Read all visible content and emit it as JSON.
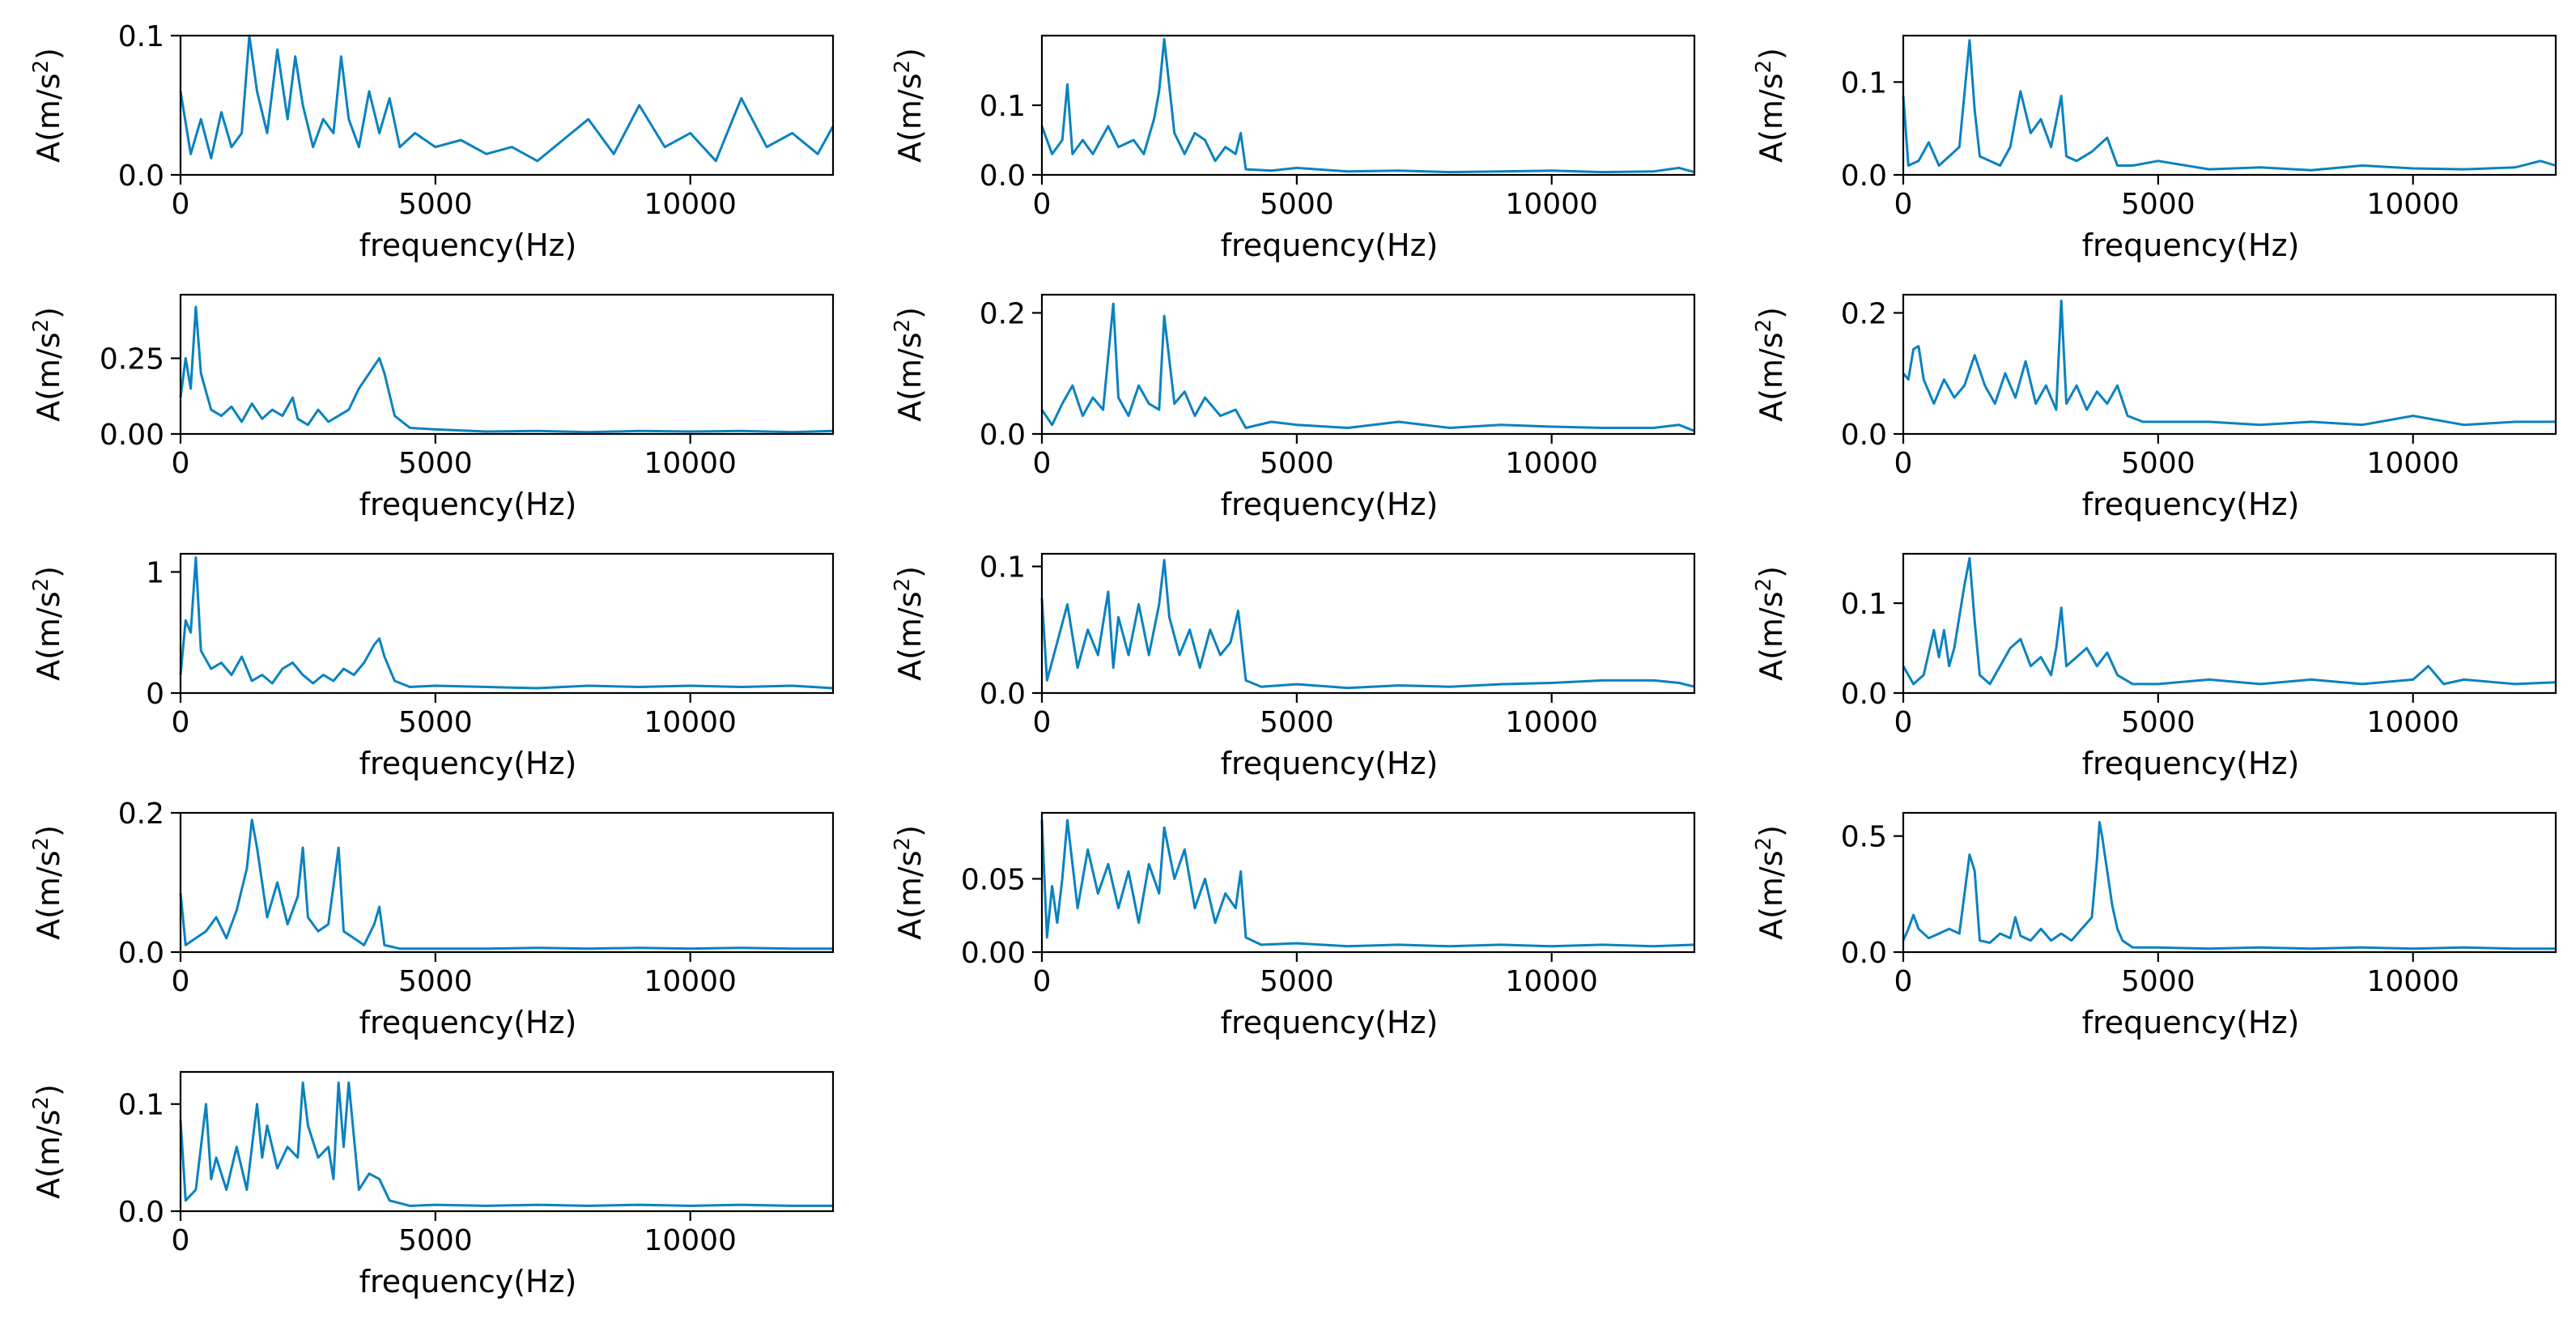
{
  "figure": {
    "line_color": "#0a82c0",
    "xlabel": "frequency(Hz)",
    "ylabel_base": "A(m/s",
    "ylabel_sup": "2",
    "ylabel_close": ")"
  },
  "chart_data": [
    {
      "type": "line",
      "panel": 1,
      "xlabel": "frequency(Hz)",
      "ylabel": "A(m/s²)",
      "xlim": [
        0,
        12800
      ],
      "ylim": [
        0,
        0.1
      ],
      "xticks": [
        0,
        5000,
        10000
      ],
      "xtick_labels": [
        "0",
        "5000",
        "10000"
      ],
      "yticks": [
        0,
        0.1
      ],
      "ytick_labels": [
        "0.0",
        "0.1"
      ],
      "x": [
        0,
        200,
        400,
        600,
        800,
        1000,
        1200,
        1350,
        1500,
        1700,
        1900,
        2100,
        2250,
        2400,
        2600,
        2800,
        3000,
        3150,
        3300,
        3500,
        3700,
        3900,
        4100,
        4300,
        4600,
        5000,
        5500,
        6000,
        6500,
        7000,
        7500,
        8000,
        8500,
        9000,
        9500,
        10000,
        10500,
        11000,
        11500,
        12000,
        12500,
        12800
      ],
      "y": [
        0.06,
        0.015,
        0.04,
        0.012,
        0.045,
        0.02,
        0.03,
        0.1,
        0.06,
        0.03,
        0.09,
        0.04,
        0.085,
        0.05,
        0.02,
        0.04,
        0.03,
        0.085,
        0.04,
        0.02,
        0.06,
        0.03,
        0.055,
        0.02,
        0.03,
        0.02,
        0.025,
        0.015,
        0.02,
        0.01,
        0.025,
        0.04,
        0.015,
        0.05,
        0.02,
        0.03,
        0.01,
        0.055,
        0.02,
        0.03,
        0.015,
        0.035
      ]
    },
    {
      "type": "line",
      "panel": 2,
      "xlabel": "frequency(Hz)",
      "ylabel": "A(m/s²)",
      "xlim": [
        0,
        12800
      ],
      "ylim": [
        0,
        0.2
      ],
      "xticks": [
        0,
        5000,
        10000
      ],
      "xtick_labels": [
        "0",
        "5000",
        "10000"
      ],
      "yticks": [
        0,
        0.1
      ],
      "ytick_labels": [
        "0.0",
        "0.1"
      ],
      "x": [
        0,
        200,
        400,
        500,
        600,
        800,
        1000,
        1300,
        1500,
        1800,
        2000,
        2200,
        2300,
        2400,
        2600,
        2800,
        3000,
        3200,
        3400,
        3600,
        3800,
        3900,
        4000,
        4500,
        5000,
        6000,
        7000,
        8000,
        9000,
        10000,
        11000,
        12000,
        12500,
        12800
      ],
      "y": [
        0.07,
        0.03,
        0.05,
        0.13,
        0.03,
        0.05,
        0.03,
        0.07,
        0.04,
        0.05,
        0.03,
        0.08,
        0.12,
        0.195,
        0.06,
        0.03,
        0.06,
        0.05,
        0.02,
        0.04,
        0.03,
        0.06,
        0.008,
        0.006,
        0.01,
        0.005,
        0.006,
        0.004,
        0.005,
        0.006,
        0.004,
        0.005,
        0.01,
        0.004
      ]
    },
    {
      "type": "line",
      "panel": 3,
      "xlabel": "frequency(Hz)",
      "ylabel": "A(m/s²)",
      "xlim": [
        0,
        12800
      ],
      "ylim": [
        0,
        0.15
      ],
      "xticks": [
        0,
        5000,
        10000
      ],
      "xtick_labels": [
        "0",
        "5000",
        "10000"
      ],
      "yticks": [
        0,
        0.1
      ],
      "ytick_labels": [
        "0.0",
        "0.1"
      ],
      "x": [
        0,
        100,
        300,
        500,
        700,
        900,
        1100,
        1300,
        1400,
        1500,
        1700,
        1900,
        2100,
        2300,
        2500,
        2700,
        2900,
        3100,
        3200,
        3400,
        3700,
        4000,
        4200,
        4500,
        5000,
        6000,
        7000,
        8000,
        9000,
        10000,
        11000,
        12000,
        12500,
        12800
      ],
      "y": [
        0.085,
        0.01,
        0.015,
        0.035,
        0.01,
        0.02,
        0.03,
        0.145,
        0.07,
        0.02,
        0.015,
        0.01,
        0.03,
        0.09,
        0.045,
        0.06,
        0.03,
        0.085,
        0.02,
        0.015,
        0.025,
        0.04,
        0.01,
        0.01,
        0.015,
        0.006,
        0.008,
        0.005,
        0.01,
        0.007,
        0.006,
        0.008,
        0.015,
        0.01
      ]
    },
    {
      "type": "line",
      "panel": 4,
      "xlabel": "frequency(Hz)",
      "ylabel": "A(m/s²)",
      "xlim": [
        0,
        12800
      ],
      "ylim": [
        0,
        0.46
      ],
      "xticks": [
        0,
        5000,
        10000
      ],
      "xtick_labels": [
        "0",
        "5000",
        "10000"
      ],
      "yticks": [
        0,
        0.25
      ],
      "ytick_labels": [
        "0.00",
        "0.25"
      ],
      "x": [
        0,
        100,
        200,
        300,
        400,
        600,
        800,
        1000,
        1200,
        1400,
        1600,
        1800,
        2000,
        2200,
        2300,
        2500,
        2700,
        2900,
        3100,
        3300,
        3500,
        3700,
        3900,
        4000,
        4200,
        4500,
        5000,
        6000,
        7000,
        8000,
        9000,
        10000,
        11000,
        12000,
        12800
      ],
      "y": [
        0.12,
        0.25,
        0.15,
        0.42,
        0.2,
        0.08,
        0.06,
        0.09,
        0.04,
        0.1,
        0.05,
        0.08,
        0.06,
        0.12,
        0.05,
        0.03,
        0.08,
        0.04,
        0.06,
        0.08,
        0.15,
        0.2,
        0.25,
        0.2,
        0.06,
        0.02,
        0.015,
        0.008,
        0.01,
        0.006,
        0.01,
        0.008,
        0.01,
        0.006,
        0.01
      ]
    },
    {
      "type": "line",
      "panel": 5,
      "xlabel": "frequency(Hz)",
      "ylabel": "A(m/s²)",
      "xlim": [
        0,
        12800
      ],
      "ylim": [
        0,
        0.23
      ],
      "xticks": [
        0,
        5000,
        10000
      ],
      "xtick_labels": [
        "0",
        "5000",
        "10000"
      ],
      "yticks": [
        0,
        0.2
      ],
      "ytick_labels": [
        "0.0",
        "0.2"
      ],
      "x": [
        0,
        200,
        400,
        600,
        800,
        1000,
        1200,
        1400,
        1500,
        1700,
        1900,
        2100,
        2300,
        2400,
        2600,
        2800,
        3000,
        3200,
        3500,
        3800,
        4000,
        4500,
        5000,
        6000,
        7000,
        8000,
        9000,
        10000,
        11000,
        12000,
        12500,
        12800
      ],
      "y": [
        0.04,
        0.015,
        0.05,
        0.08,
        0.03,
        0.06,
        0.04,
        0.215,
        0.06,
        0.03,
        0.08,
        0.05,
        0.04,
        0.195,
        0.05,
        0.07,
        0.03,
        0.06,
        0.03,
        0.04,
        0.01,
        0.02,
        0.015,
        0.01,
        0.02,
        0.01,
        0.015,
        0.012,
        0.01,
        0.01,
        0.015,
        0.005
      ]
    },
    {
      "type": "line",
      "panel": 6,
      "xlabel": "frequency(Hz)",
      "ylabel": "A(m/s²)",
      "xlim": [
        0,
        12800
      ],
      "ylim": [
        0,
        0.23
      ],
      "xticks": [
        0,
        5000,
        10000
      ],
      "xtick_labels": [
        "0",
        "5000",
        "10000"
      ],
      "yticks": [
        0,
        0.2
      ],
      "ytick_labels": [
        "0.0",
        "0.2"
      ],
      "x": [
        0,
        100,
        200,
        300,
        400,
        600,
        800,
        1000,
        1200,
        1400,
        1600,
        1800,
        2000,
        2200,
        2400,
        2600,
        2800,
        3000,
        3100,
        3200,
        3400,
        3600,
        3800,
        4000,
        4200,
        4400,
        4700,
        5000,
        6000,
        7000,
        8000,
        9000,
        10000,
        11000,
        12000,
        12800
      ],
      "y": [
        0.1,
        0.09,
        0.14,
        0.145,
        0.09,
        0.05,
        0.09,
        0.06,
        0.08,
        0.13,
        0.08,
        0.05,
        0.1,
        0.06,
        0.12,
        0.05,
        0.08,
        0.04,
        0.22,
        0.05,
        0.08,
        0.04,
        0.07,
        0.05,
        0.08,
        0.03,
        0.02,
        0.02,
        0.02,
        0.015,
        0.02,
        0.015,
        0.03,
        0.015,
        0.02,
        0.02
      ]
    },
    {
      "type": "line",
      "panel": 7,
      "xlabel": "frequency(Hz)",
      "ylabel": "A(m/s²)",
      "xlim": [
        0,
        12800
      ],
      "ylim": [
        0,
        1.15
      ],
      "xticks": [
        0,
        5000,
        10000
      ],
      "xtick_labels": [
        "0",
        "5000",
        "10000"
      ],
      "yticks": [
        0,
        1
      ],
      "ytick_labels": [
        "0",
        "1"
      ],
      "x": [
        0,
        100,
        200,
        300,
        400,
        600,
        800,
        1000,
        1200,
        1400,
        1600,
        1800,
        2000,
        2200,
        2400,
        2600,
        2800,
        3000,
        3200,
        3400,
        3600,
        3800,
        3900,
        4000,
        4200,
        4500,
        5000,
        6000,
        7000,
        8000,
        9000,
        10000,
        11000,
        12000,
        12800
      ],
      "y": [
        0.15,
        0.6,
        0.5,
        1.12,
        0.35,
        0.2,
        0.25,
        0.15,
        0.3,
        0.1,
        0.15,
        0.08,
        0.2,
        0.25,
        0.15,
        0.08,
        0.15,
        0.1,
        0.2,
        0.15,
        0.25,
        0.4,
        0.45,
        0.3,
        0.1,
        0.05,
        0.06,
        0.05,
        0.04,
        0.06,
        0.05,
        0.06,
        0.05,
        0.06,
        0.04
      ]
    },
    {
      "type": "line",
      "panel": 8,
      "xlabel": "frequency(Hz)",
      "ylabel": "A(m/s²)",
      "xlim": [
        0,
        12800
      ],
      "ylim": [
        0,
        0.11
      ],
      "xticks": [
        0,
        5000,
        10000
      ],
      "xtick_labels": [
        "0",
        "5000",
        "10000"
      ],
      "yticks": [
        0,
        0.1
      ],
      "ytick_labels": [
        "0.0",
        "0.1"
      ],
      "x": [
        0,
        100,
        300,
        500,
        700,
        900,
        1100,
        1300,
        1400,
        1500,
        1700,
        1900,
        2100,
        2300,
        2400,
        2500,
        2700,
        2900,
        3100,
        3300,
        3500,
        3700,
        3850,
        4000,
        4300,
        5000,
        6000,
        7000,
        8000,
        9000,
        10000,
        11000,
        12000,
        12500,
        12800
      ],
      "y": [
        0.075,
        0.01,
        0.04,
        0.07,
        0.02,
        0.05,
        0.03,
        0.08,
        0.02,
        0.06,
        0.03,
        0.07,
        0.03,
        0.07,
        0.105,
        0.06,
        0.03,
        0.05,
        0.02,
        0.05,
        0.03,
        0.04,
        0.065,
        0.01,
        0.005,
        0.007,
        0.004,
        0.006,
        0.005,
        0.007,
        0.008,
        0.01,
        0.01,
        0.008,
        0.005
      ]
    },
    {
      "type": "line",
      "panel": 9,
      "xlabel": "frequency(Hz)",
      "ylabel": "A(m/s²)",
      "xlim": [
        0,
        12800
      ],
      "ylim": [
        0,
        0.155
      ],
      "xticks": [
        0,
        5000,
        10000
      ],
      "xtick_labels": [
        "0",
        "5000",
        "10000"
      ],
      "yticks": [
        0,
        0.1
      ],
      "ytick_labels": [
        "0.0",
        "0.1"
      ],
      "x": [
        0,
        200,
        400,
        600,
        700,
        800,
        900,
        1000,
        1200,
        1300,
        1400,
        1500,
        1700,
        1900,
        2100,
        2300,
        2500,
        2700,
        2900,
        3000,
        3100,
        3200,
        3400,
        3600,
        3800,
        4000,
        4200,
        4500,
        5000,
        6000,
        7000,
        8000,
        9000,
        10000,
        10300,
        10600,
        11000,
        12000,
        12800
      ],
      "y": [
        0.03,
        0.01,
        0.02,
        0.07,
        0.04,
        0.07,
        0.03,
        0.05,
        0.12,
        0.15,
        0.08,
        0.02,
        0.01,
        0.03,
        0.05,
        0.06,
        0.03,
        0.04,
        0.02,
        0.05,
        0.095,
        0.03,
        0.04,
        0.05,
        0.03,
        0.045,
        0.02,
        0.01,
        0.01,
        0.015,
        0.01,
        0.015,
        0.01,
        0.015,
        0.03,
        0.01,
        0.015,
        0.01,
        0.012
      ]
    },
    {
      "type": "line",
      "panel": 10,
      "xlabel": "frequency(Hz)",
      "ylabel": "A(m/s²)",
      "xlim": [
        0,
        12800
      ],
      "ylim": [
        0,
        0.2
      ],
      "xticks": [
        0,
        5000,
        10000
      ],
      "xtick_labels": [
        "0",
        "5000",
        "10000"
      ],
      "yticks": [
        0,
        0.2
      ],
      "ytick_labels": [
        "0.0",
        "0.2"
      ],
      "x": [
        0,
        100,
        300,
        500,
        700,
        900,
        1100,
        1300,
        1400,
        1500,
        1700,
        1900,
        2100,
        2300,
        2400,
        2500,
        2700,
        2900,
        3100,
        3200,
        3400,
        3600,
        3800,
        3900,
        4000,
        4300,
        5000,
        6000,
        7000,
        8000,
        9000,
        10000,
        11000,
        12000,
        12800
      ],
      "y": [
        0.085,
        0.01,
        0.02,
        0.03,
        0.05,
        0.02,
        0.06,
        0.12,
        0.19,
        0.15,
        0.05,
        0.1,
        0.04,
        0.08,
        0.15,
        0.05,
        0.03,
        0.04,
        0.15,
        0.03,
        0.02,
        0.01,
        0.04,
        0.065,
        0.01,
        0.005,
        0.005,
        0.005,
        0.006,
        0.005,
        0.006,
        0.005,
        0.006,
        0.005,
        0.005
      ]
    },
    {
      "type": "line",
      "panel": 11,
      "xlabel": "frequency(Hz)",
      "ylabel": "A(m/s²)",
      "xlim": [
        0,
        12800
      ],
      "ylim": [
        0,
        0.095
      ],
      "xticks": [
        0,
        5000,
        10000
      ],
      "xtick_labels": [
        "0",
        "5000",
        "10000"
      ],
      "yticks": [
        0,
        0.05
      ],
      "ytick_labels": [
        "0.00",
        "0.05"
      ],
      "x": [
        0,
        100,
        200,
        300,
        400,
        500,
        700,
        900,
        1100,
        1300,
        1500,
        1700,
        1900,
        2100,
        2300,
        2400,
        2600,
        2800,
        3000,
        3200,
        3400,
        3600,
        3800,
        3900,
        4000,
        4300,
        5000,
        6000,
        7000,
        8000,
        9000,
        10000,
        11000,
        12000,
        12800
      ],
      "y": [
        0.09,
        0.01,
        0.045,
        0.02,
        0.05,
        0.09,
        0.03,
        0.07,
        0.04,
        0.06,
        0.03,
        0.055,
        0.02,
        0.06,
        0.04,
        0.085,
        0.05,
        0.07,
        0.03,
        0.05,
        0.02,
        0.04,
        0.03,
        0.055,
        0.01,
        0.005,
        0.006,
        0.004,
        0.005,
        0.004,
        0.005,
        0.004,
        0.005,
        0.004,
        0.005
      ]
    },
    {
      "type": "line",
      "panel": 12,
      "xlabel": "frequency(Hz)",
      "ylabel": "A(m/s²)",
      "xlim": [
        0,
        12800
      ],
      "ylim": [
        0,
        0.6
      ],
      "xticks": [
        0,
        5000,
        10000
      ],
      "xtick_labels": [
        "0",
        "5000",
        "10000"
      ],
      "yticks": [
        0,
        0.5
      ],
      "ytick_labels": [
        "0.0",
        "0.5"
      ],
      "x": [
        0,
        100,
        200,
        300,
        500,
        700,
        900,
        1100,
        1300,
        1400,
        1500,
        1700,
        1900,
        2100,
        2200,
        2300,
        2500,
        2700,
        2900,
        3100,
        3300,
        3500,
        3700,
        3800,
        3850,
        3900,
        4000,
        4100,
        4200,
        4300,
        4500,
        5000,
        6000,
        7000,
        8000,
        9000,
        10000,
        11000,
        12000,
        12800
      ],
      "y": [
        0.05,
        0.1,
        0.16,
        0.1,
        0.06,
        0.08,
        0.1,
        0.08,
        0.42,
        0.35,
        0.05,
        0.04,
        0.08,
        0.06,
        0.15,
        0.07,
        0.05,
        0.1,
        0.05,
        0.08,
        0.05,
        0.1,
        0.15,
        0.4,
        0.56,
        0.5,
        0.35,
        0.2,
        0.1,
        0.05,
        0.02,
        0.02,
        0.015,
        0.02,
        0.015,
        0.02,
        0.015,
        0.02,
        0.015,
        0.015
      ]
    },
    {
      "type": "line",
      "panel": 13,
      "xlabel": "frequency(Hz)",
      "ylabel": "A(m/s²)",
      "xlim": [
        0,
        12800
      ],
      "ylim": [
        0,
        0.13
      ],
      "xticks": [
        0,
        5000,
        10000
      ],
      "xtick_labels": [
        "0",
        "5000",
        "10000"
      ],
      "yticks": [
        0,
        0.1
      ],
      "ytick_labels": [
        "0.0",
        "0.1"
      ],
      "x": [
        0,
        100,
        300,
        500,
        600,
        700,
        900,
        1100,
        1300,
        1500,
        1600,
        1700,
        1900,
        2100,
        2300,
        2400,
        2500,
        2700,
        2900,
        3000,
        3100,
        3200,
        3300,
        3500,
        3700,
        3900,
        4100,
        4500,
        5000,
        6000,
        7000,
        8000,
        9000,
        10000,
        11000,
        12000,
        12800
      ],
      "y": [
        0.085,
        0.01,
        0.02,
        0.1,
        0.03,
        0.05,
        0.02,
        0.06,
        0.02,
        0.1,
        0.05,
        0.08,
        0.04,
        0.06,
        0.05,
        0.12,
        0.08,
        0.05,
        0.06,
        0.03,
        0.12,
        0.06,
        0.12,
        0.02,
        0.035,
        0.03,
        0.01,
        0.005,
        0.006,
        0.005,
        0.006,
        0.005,
        0.006,
        0.005,
        0.006,
        0.005,
        0.005
      ]
    }
  ]
}
